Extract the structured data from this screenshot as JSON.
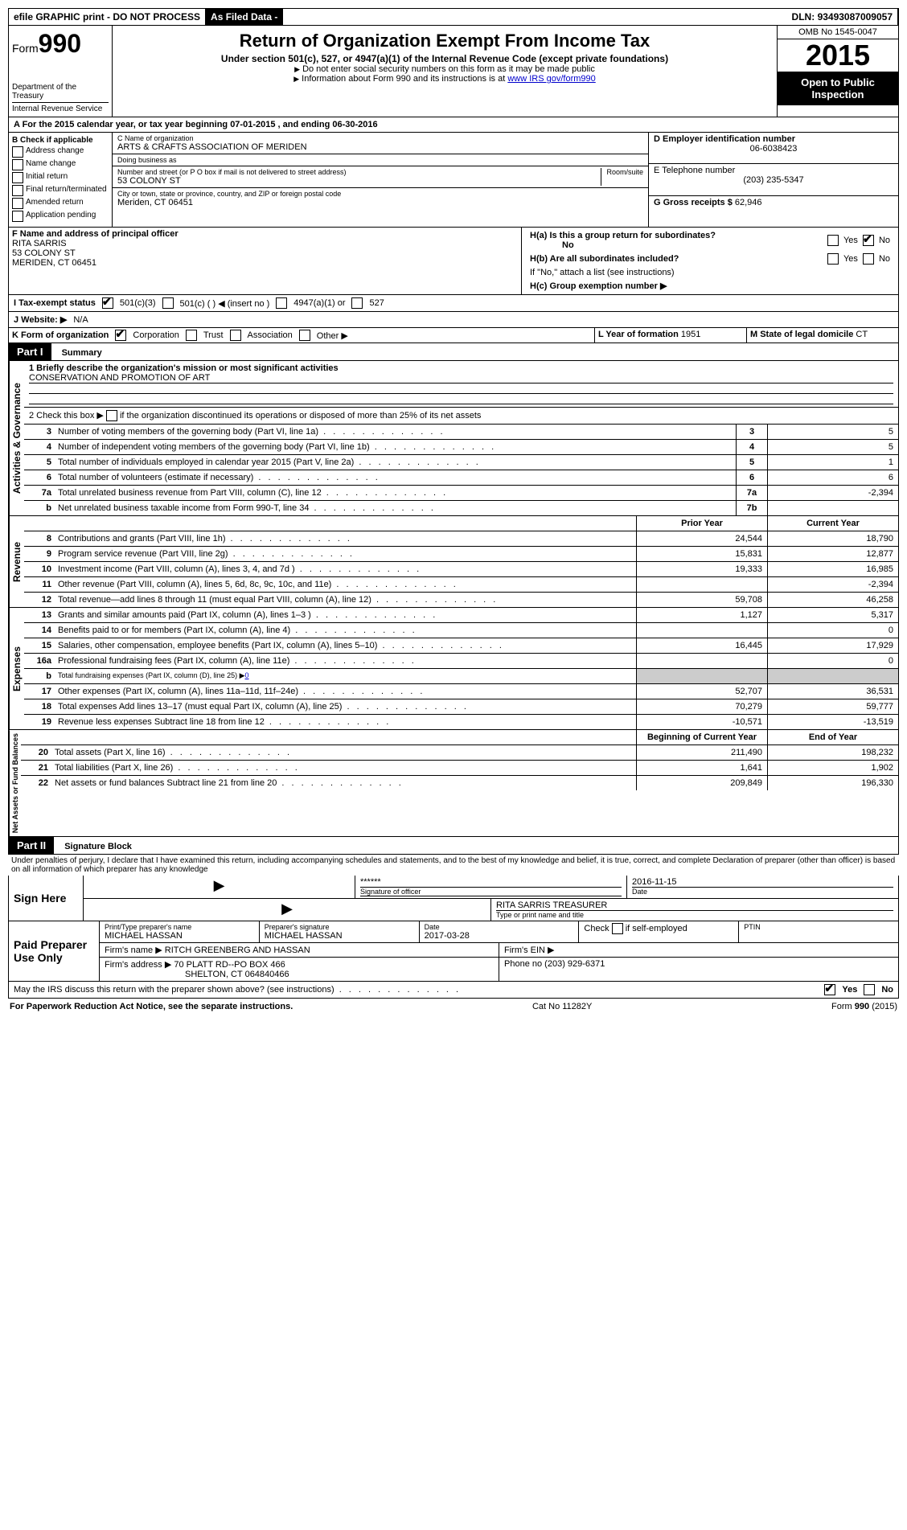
{
  "topbar": {
    "efile": "efile GRAPHIC print - DO NOT PROCESS",
    "asfiled": "As Filed Data -",
    "dln_label": "DLN:",
    "dln": "93493087009057"
  },
  "header": {
    "form_label": "Form",
    "form_num": "990",
    "dept": "Department of the Treasury",
    "irs": "Internal Revenue Service",
    "title": "Return of Organization Exempt From Income Tax",
    "subtitle": "Under section 501(c), 527, or 4947(a)(1) of the Internal Revenue Code (except private foundations)",
    "note1": "Do not enter social security numbers on this form as it may be made public",
    "note2": "Information about Form 990 and its instructions is at",
    "link": "www IRS gov/form990",
    "omb": "OMB No 1545-0047",
    "year": "2015",
    "inspect": "Open to Public Inspection"
  },
  "sectionA": {
    "text": "A  For the 2015 calendar year, or tax year beginning 07-01-2015   , and ending 06-30-2016"
  },
  "sectionB": {
    "label": "B  Check if applicable",
    "items": [
      "Address change",
      "Name change",
      "Initial return",
      "Final return/terminated",
      "Amended return",
      "Application pending"
    ]
  },
  "sectionC": {
    "label": "C Name of organization",
    "name": "ARTS & CRAFTS ASSOCIATION OF MERIDEN",
    "dba_label": "Doing business as",
    "dba": "",
    "street_label": "Number and street (or P O box if mail is not delivered to street address)",
    "room_label": "Room/suite",
    "street": "53 COLONY ST",
    "city_label": "City or town, state or province, country, and ZIP or foreign postal code",
    "city": "Meriden, CT  06451"
  },
  "sectionD": {
    "label": "D Employer identification number",
    "value": "06-6038423"
  },
  "sectionE": {
    "label": "E Telephone number",
    "value": "(203) 235-5347"
  },
  "sectionG": {
    "label": "G Gross receipts $",
    "value": "62,946"
  },
  "sectionF": {
    "label": "F Name and address of principal officer",
    "name": "RITA SARRIS",
    "street": "53 COLONY ST",
    "city": "MERIDEN, CT 06451"
  },
  "sectionH": {
    "a_label": "H(a)  Is this a group return for subordinates?",
    "a_no": "No",
    "yes": "Yes",
    "no": "No",
    "b_label": "H(b)  Are all subordinates included?",
    "b_note": "If \"No,\" attach a list (see instructions)",
    "c_label": "H(c)  Group exemption number ▶"
  },
  "sectionI": {
    "label": "I   Tax-exempt status",
    "opts": [
      "501(c)(3)",
      "501(c) (  ) ◀ (insert no )",
      "4947(a)(1) or",
      "527"
    ]
  },
  "sectionJ": {
    "label": "J   Website: ▶",
    "value": "N/A"
  },
  "sectionK": {
    "label": "K Form of organization",
    "opts": [
      "Corporation",
      "Trust",
      "Association",
      "Other ▶"
    ]
  },
  "sectionL": {
    "label": "L Year of formation",
    "value": "1951"
  },
  "sectionM": {
    "label": "M State of legal domicile",
    "value": "CT"
  },
  "partI": {
    "label": "Part I",
    "title": "Summary",
    "line1_label": "1 Briefly describe the organization's mission or most significant activities",
    "line1_val": "CONSERVATION AND PROMOTION OF ART",
    "line2": "2  Check this box ▶",
    "line2_text": "if the organization discontinued its operations or disposed of more than 25% of its net assets",
    "tabs": {
      "governance": "Activities & Governance",
      "revenue": "Revenue",
      "expenses": "Expenses",
      "netassets": "Net Assets or Fund Balances"
    },
    "gov_lines": [
      {
        "n": "3",
        "t": "Number of voting members of the governing body (Part VI, line 1a)",
        "box": "3",
        "v": "5"
      },
      {
        "n": "4",
        "t": "Number of independent voting members of the governing body (Part VI, line 1b)",
        "box": "4",
        "v": "5"
      },
      {
        "n": "5",
        "t": "Total number of individuals employed in calendar year 2015 (Part V, line 2a)",
        "box": "5",
        "v": "1"
      },
      {
        "n": "6",
        "t": "Total number of volunteers (estimate if necessary)",
        "box": "6",
        "v": "6"
      },
      {
        "n": "7a",
        "t": "Total unrelated business revenue from Part VIII, column (C), line 12",
        "box": "7a",
        "v": "-2,394"
      },
      {
        "n": "b",
        "t": "Net unrelated business taxable income from Form 990-T, line 34",
        "box": "7b",
        "v": ""
      }
    ],
    "col_hdr": {
      "prior": "Prior Year",
      "current": "Current Year"
    },
    "rev_lines": [
      {
        "n": "8",
        "t": "Contributions and grants (Part VIII, line 1h)",
        "p": "24,544",
        "c": "18,790"
      },
      {
        "n": "9",
        "t": "Program service revenue (Part VIII, line 2g)",
        "p": "15,831",
        "c": "12,877"
      },
      {
        "n": "10",
        "t": "Investment income (Part VIII, column (A), lines 3, 4, and 7d )",
        "p": "19,333",
        "c": "16,985"
      },
      {
        "n": "11",
        "t": "Other revenue (Part VIII, column (A), lines 5, 6d, 8c, 9c, 10c, and 11e)",
        "p": "",
        "c": "-2,394"
      },
      {
        "n": "12",
        "t": "Total revenue—add lines 8 through 11 (must equal Part VIII, column (A), line 12)",
        "p": "59,708",
        "c": "46,258"
      }
    ],
    "exp_lines": [
      {
        "n": "13",
        "t": "Grants and similar amounts paid (Part IX, column (A), lines 1–3 )",
        "p": "1,127",
        "c": "5,317"
      },
      {
        "n": "14",
        "t": "Benefits paid to or for members (Part IX, column (A), line 4)",
        "p": "",
        "c": "0"
      },
      {
        "n": "15",
        "t": "Salaries, other compensation, employee benefits (Part IX, column (A), lines 5–10)",
        "p": "16,445",
        "c": "17,929"
      },
      {
        "n": "16a",
        "t": "Professional fundraising fees (Part IX, column (A), line 11e)",
        "p": "",
        "c": "0"
      },
      {
        "n": "b",
        "t": "Total fundraising expenses (Part IX, column (D), line 25) ▶",
        "p": "grey",
        "c": "grey",
        "extra": "0"
      },
      {
        "n": "17",
        "t": "Other expenses (Part IX, column (A), lines 11a–11d, 11f–24e)",
        "p": "52,707",
        "c": "36,531"
      },
      {
        "n": "18",
        "t": "Total expenses Add lines 13–17 (must equal Part IX, column (A), line 25)",
        "p": "70,279",
        "c": "59,777"
      },
      {
        "n": "19",
        "t": "Revenue less expenses Subtract line 18 from line 12",
        "p": "-10,571",
        "c": "-13,519"
      }
    ],
    "net_hdr": {
      "begin": "Beginning of Current Year",
      "end": "End of Year"
    },
    "net_lines": [
      {
        "n": "20",
        "t": "Total assets (Part X, line 16)",
        "p": "211,490",
        "c": "198,232"
      },
      {
        "n": "21",
        "t": "Total liabilities (Part X, line 26)",
        "p": "1,641",
        "c": "1,902"
      },
      {
        "n": "22",
        "t": "Net assets or fund balances Subtract line 21 from line 20",
        "p": "209,849",
        "c": "196,330"
      }
    ]
  },
  "partII": {
    "label": "Part II",
    "title": "Signature Block",
    "perjury": "Under penalties of perjury, I declare that I have examined this return, including accompanying schedules and statements, and to the best of my knowledge and belief, it is true, correct, and complete Declaration of preparer (other than officer) is based on all information of which preparer has any knowledge"
  },
  "sign": {
    "here": "Sign Here",
    "stars": "******",
    "sig_label": "Signature of officer",
    "date_label": "Date",
    "date": "2016-11-15",
    "name": "RITA SARRIS TREASURER",
    "name_label": "Type or print name and title"
  },
  "preparer": {
    "label": "Paid Preparer Use Only",
    "print_label": "Print/Type preparer's name",
    "print_name": "MICHAEL HASSAN",
    "sig_label": "Preparer's signature",
    "sig_name": "MICHAEL HASSAN",
    "date_label": "Date",
    "date": "2017-03-28",
    "check_label": "Check",
    "self_emp": "if self-employed",
    "ptin": "PTIN",
    "firm_name_label": "Firm's name    ▶",
    "firm_name": "RITCH GREENBERG AND HASSAN",
    "firm_ein": "Firm's EIN ▶",
    "firm_addr_label": "Firm's address ▶",
    "firm_addr": "70 PLATT RD--PO BOX 466",
    "firm_city": "SHELTON, CT  064840466",
    "phone_label": "Phone no",
    "phone": "(203) 929-6371"
  },
  "discuss": {
    "text": "May the IRS discuss this return with the preparer shown above? (see instructions)",
    "yes": "Yes",
    "no": "No"
  },
  "footer": {
    "left": "For Paperwork Reduction Act Notice, see the separate instructions.",
    "mid": "Cat No 11282Y",
    "right": "Form 990 (2015)"
  },
  "colors": {
    "black": "#000000",
    "grey": "#cccccc",
    "link": "#0000cc"
  }
}
